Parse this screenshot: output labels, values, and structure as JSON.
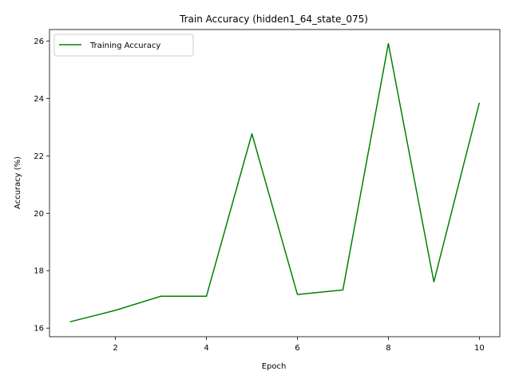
{
  "chart_data": {
    "type": "line",
    "title": "Train Accuracy (hidden1_64_state_075)",
    "xlabel": "Epoch",
    "ylabel": "Accuracy (%)",
    "xlim": [
      0.55,
      10.45
    ],
    "ylim": [
      15.7,
      26.4
    ],
    "xticks": [
      2,
      4,
      6,
      8,
      10
    ],
    "yticks": [
      16,
      18,
      20,
      22,
      24,
      26
    ],
    "grid": false,
    "legend": {
      "position": "upper left"
    },
    "series": [
      {
        "name": "Training Accuracy",
        "color": "#008000",
        "x": [
          1,
          2,
          3,
          4,
          5,
          6,
          7,
          8,
          9,
          10
        ],
        "values": [
          16.22,
          16.62,
          17.11,
          17.11,
          22.77,
          17.17,
          17.33,
          25.91,
          17.61,
          23.85
        ]
      }
    ]
  }
}
